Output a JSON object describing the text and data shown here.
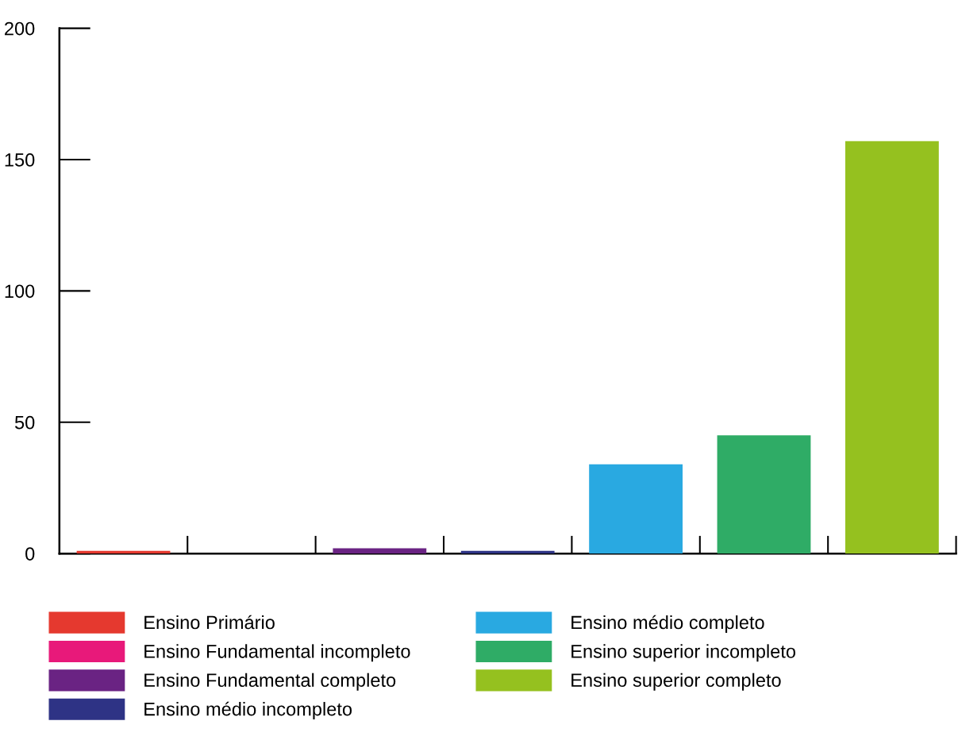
{
  "chart_data": {
    "type": "bar",
    "categories": [
      null,
      null,
      null,
      null,
      null,
      null,
      null
    ],
    "series": [
      {
        "name": "Ensino Primário",
        "color": "#e5392f",
        "values": [
          1,
          null,
          null,
          null,
          null,
          null,
          null
        ]
      },
      {
        "name": "Ensino Fundamental incompleto",
        "color": "#e8197a",
        "values": [
          null,
          0,
          null,
          null,
          null,
          null,
          null
        ]
      },
      {
        "name": "Ensino Fundamental completo",
        "color": "#6a2383",
        "values": [
          null,
          null,
          2,
          null,
          null,
          null,
          null
        ]
      },
      {
        "name": "Ensino médio incompleto",
        "color": "#2e3385",
        "values": [
          null,
          null,
          null,
          1,
          null,
          null,
          null
        ]
      },
      {
        "name": "Ensino médio completo",
        "color": "#29a9e1",
        "values": [
          null,
          null,
          null,
          null,
          34,
          null,
          null
        ]
      },
      {
        "name": "Ensino superior incompleto",
        "color": "#2fac66",
        "values": [
          null,
          null,
          null,
          null,
          null,
          45,
          null
        ]
      },
      {
        "name": "Ensino superior completo",
        "color": "#95c11f",
        "values": [
          null,
          null,
          null,
          null,
          null,
          null,
          157
        ]
      }
    ],
    "ylim": [
      0,
      200
    ],
    "yticks": [
      0,
      50,
      100,
      150,
      200
    ],
    "grid": false,
    "legend": "bottom",
    "tick_labels": "y"
  }
}
